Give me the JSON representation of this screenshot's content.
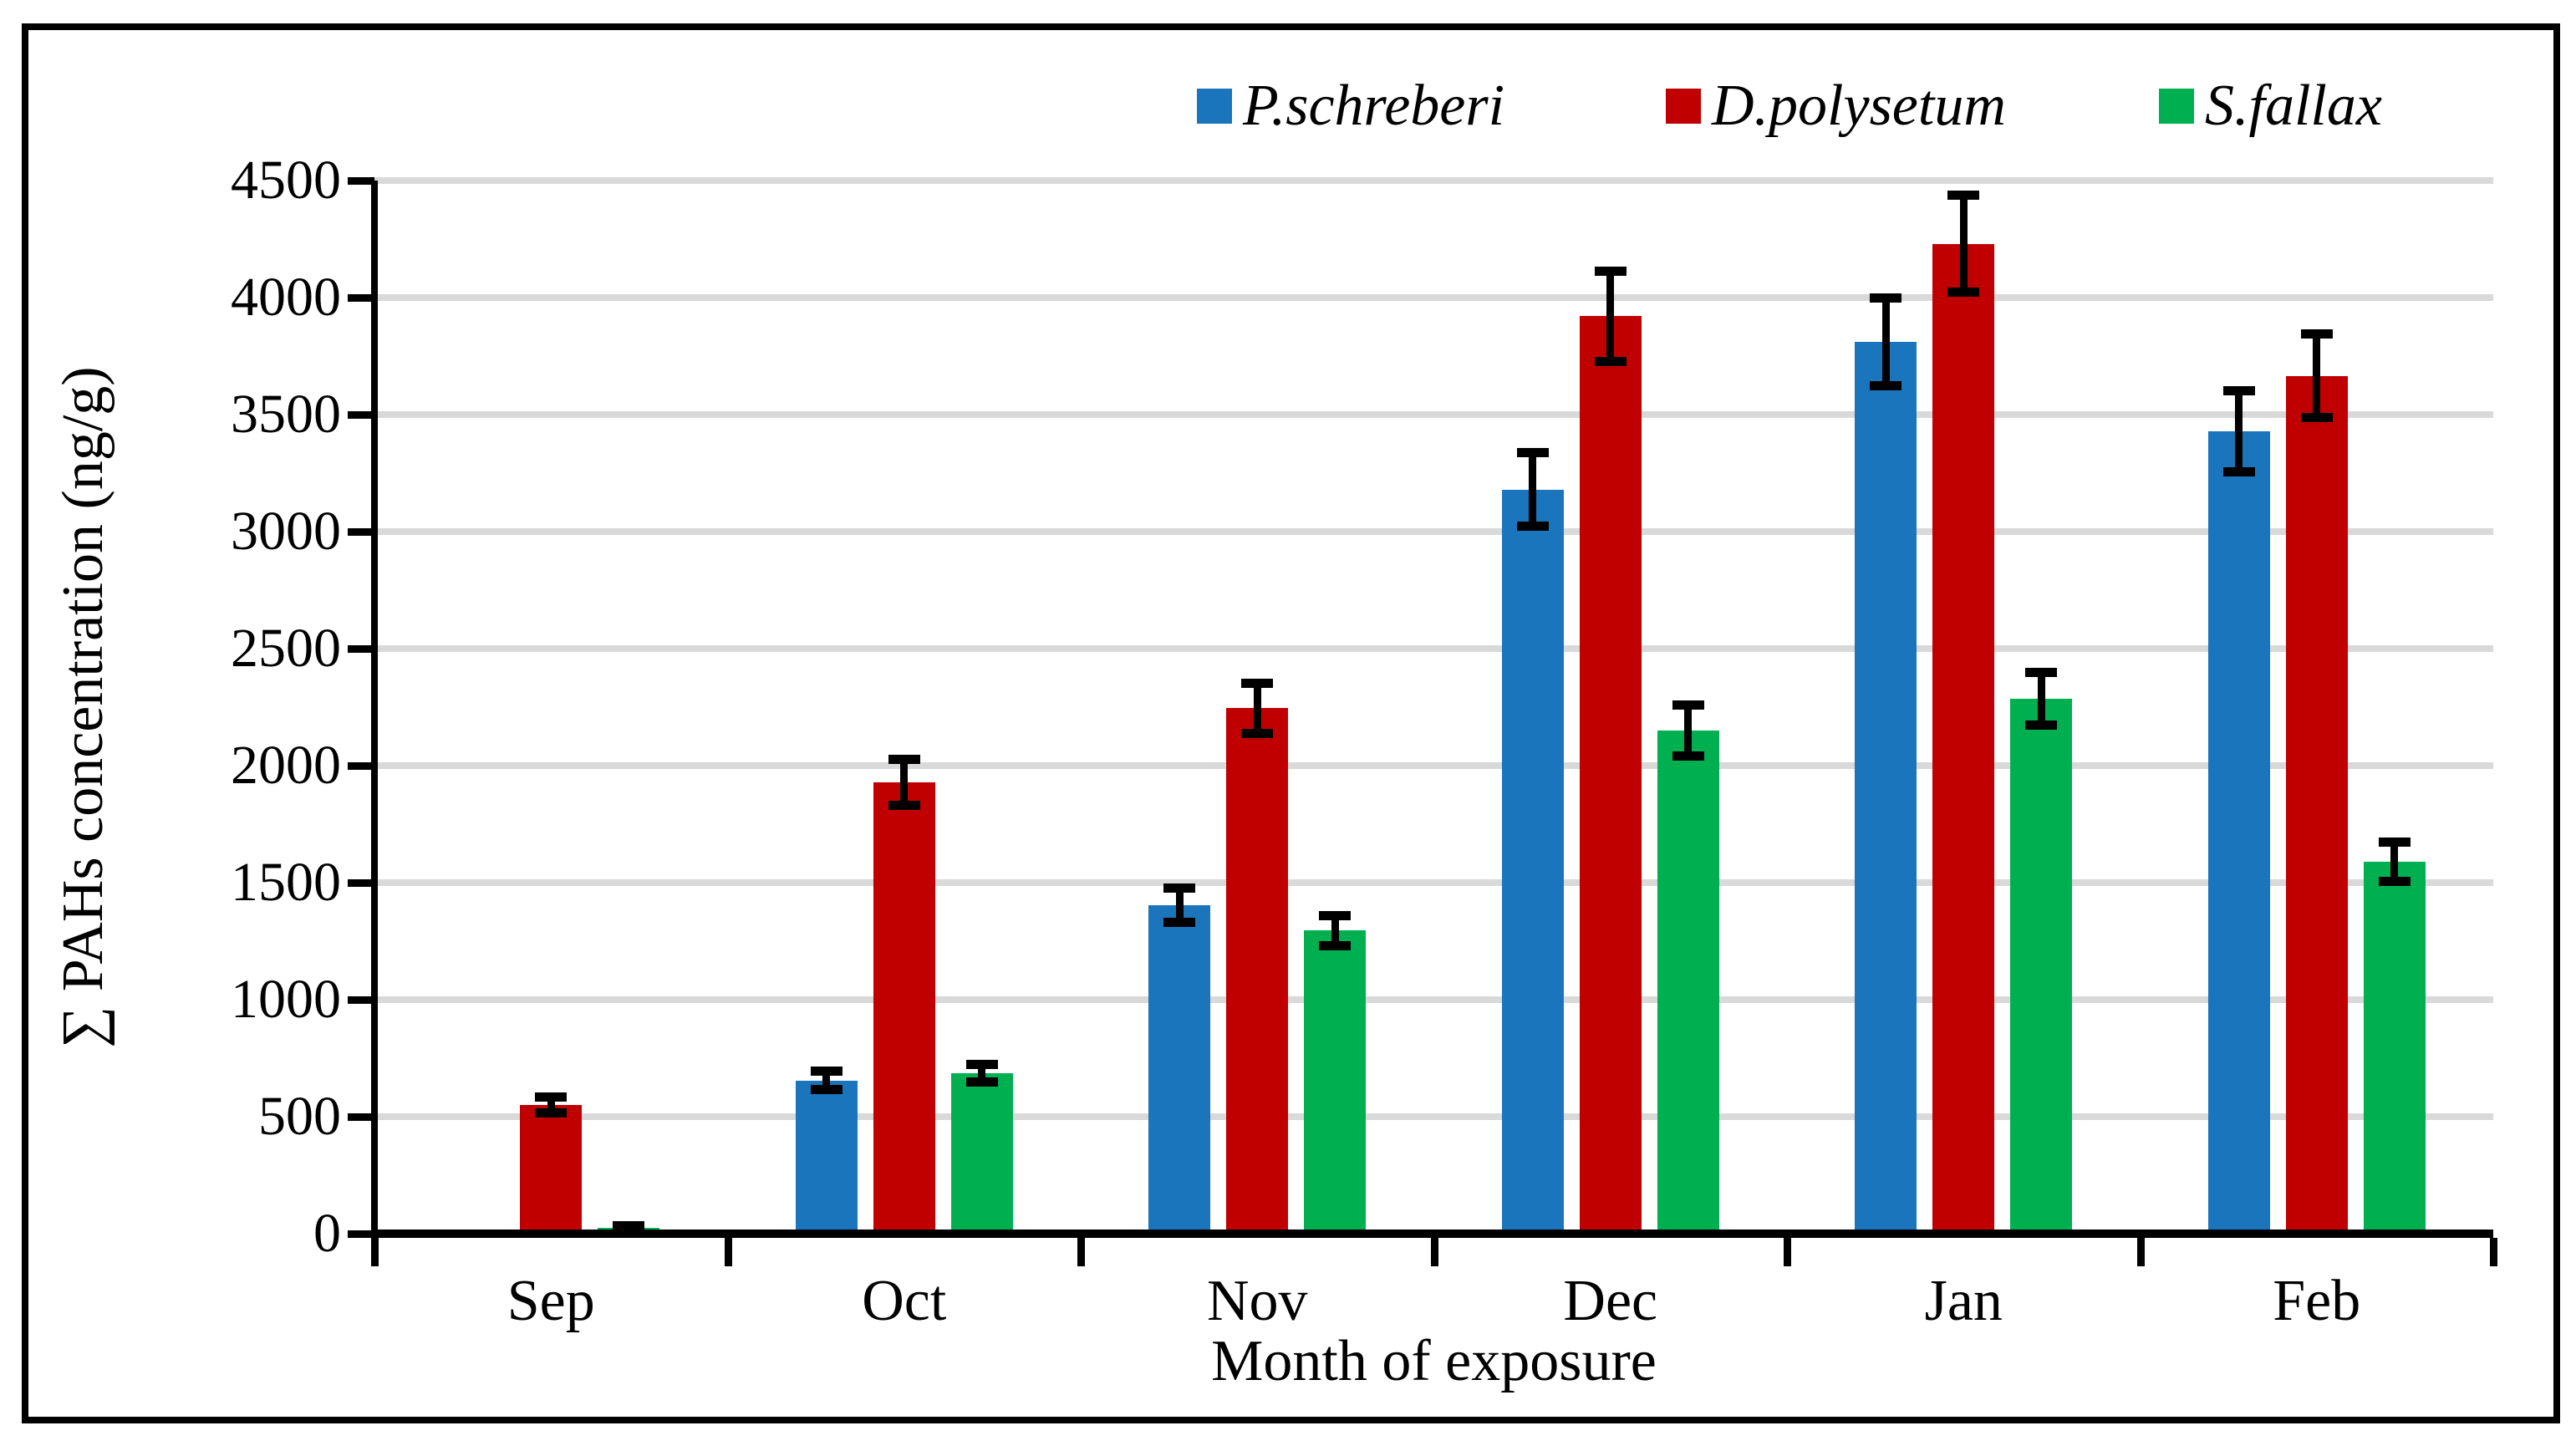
{
  "chart_data": {
    "type": "bar",
    "title": "",
    "xlabel": "Month of exposure",
    "ylabel": "∑ PAHs concentration (ng/g)",
    "categories": [
      "Sep",
      "Oct",
      "Nov",
      "Dec",
      "Jan",
      "Feb"
    ],
    "series": [
      {
        "name": "P.schreberi",
        "color": "#1B75BC",
        "values": [
          0,
          655,
          1405,
          3180,
          3810,
          3430
        ],
        "errors": [
          0,
          40,
          75,
          160,
          190,
          175
        ]
      },
      {
        "name": "D.polysetum",
        "color": "#C00000",
        "values": [
          550,
          1930,
          2245,
          3920,
          4230,
          3665
        ],
        "errors": [
          35,
          100,
          110,
          195,
          210,
          180
        ]
      },
      {
        "name": "S.fallax",
        "color": "#00B050",
        "values": [
          25,
          685,
          1295,
          2150,
          2285,
          1590
        ],
        "errors": [
          12,
          40,
          65,
          110,
          115,
          85
        ]
      }
    ],
    "ylim": [
      0,
      4500
    ],
    "ytick_step": 500,
    "yticks": [
      0,
      500,
      1000,
      1500,
      2000,
      2500,
      3000,
      3500,
      4000,
      4500
    ],
    "grid": true,
    "error_bars": true,
    "legend_position": "top-right"
  },
  "colors": {
    "grid": "#D9D9D9",
    "axis": "#000000",
    "frame": "#000000",
    "background": "#FFFFFF",
    "series_blue": "#1B75BC",
    "series_red": "#C00000",
    "series_green": "#00B050"
  }
}
